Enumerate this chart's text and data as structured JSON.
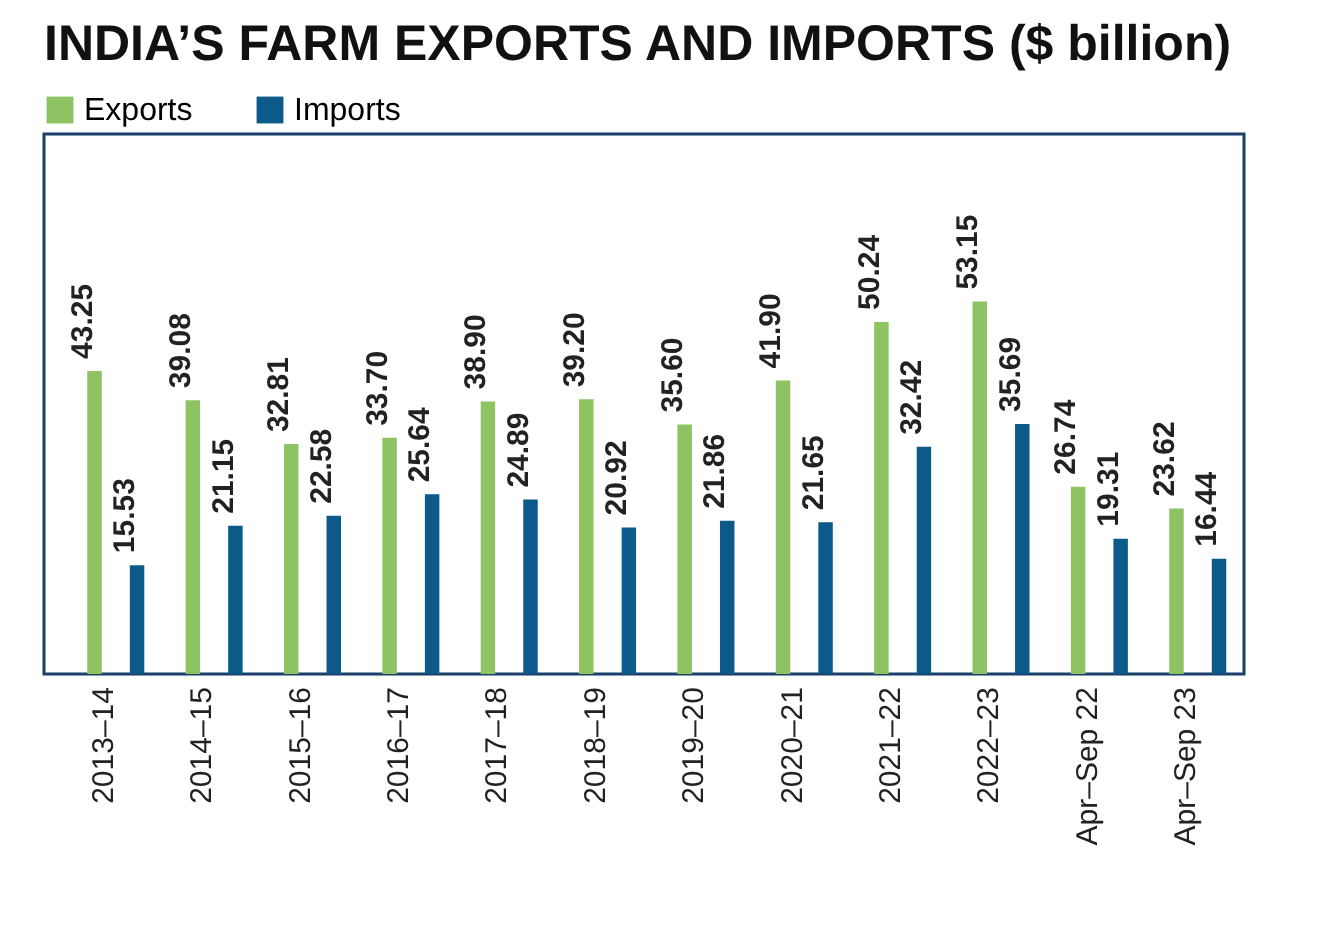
{
  "chart_data": {
    "type": "bar",
    "title": "INDIA’S FARM EXPORTS AND IMPORTS ($ billion)",
    "categories": [
      "2013–14",
      "2014–15",
      "2015–16",
      "2016–17",
      "2017–18",
      "2018–19",
      "2019–20",
      "2020–21",
      "2021–22",
      "2022–23",
      "Apr–Sep 22",
      "Apr–Sep 23"
    ],
    "series": [
      {
        "name": "Exports",
        "color": "#8dc363",
        "values": [
          43.25,
          39.08,
          32.81,
          33.7,
          38.9,
          39.2,
          35.6,
          41.9,
          50.24,
          53.15,
          26.74,
          23.62
        ],
        "value_labels": [
          "43.25",
          "39.08",
          "32.81",
          "33.70",
          "38.90",
          "39.20",
          "35.60",
          "41.90",
          "50.24",
          "53.15",
          "26.74",
          "23.62"
        ]
      },
      {
        "name": "Imports",
        "color": "#0b5a8a",
        "values": [
          15.53,
          21.15,
          22.58,
          25.64,
          24.89,
          20.92,
          21.86,
          21.65,
          32.42,
          35.69,
          19.31,
          16.44
        ],
        "value_labels": [
          "15.53",
          "21.15",
          "22.58",
          "25.64",
          "24.89",
          "20.92",
          "21.86",
          "21.65",
          "32.42",
          "35.69",
          "19.31",
          "16.44"
        ]
      }
    ],
    "legend": "top left"
  }
}
